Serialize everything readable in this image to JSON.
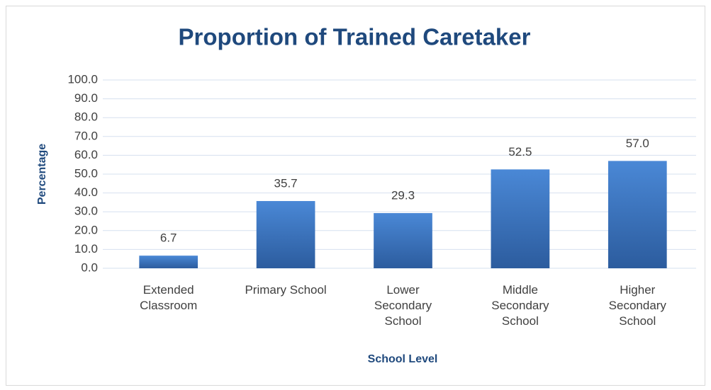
{
  "chart_data": {
    "type": "bar",
    "title": "Proportion of Trained Caretaker",
    "x_label": "School Level",
    "y_label": "Percentage",
    "categories": [
      "Extended Classroom",
      "Primary School",
      "Lower Secondary School",
      "Middle Secondary School",
      "Higher Secondary School"
    ],
    "values": [
      6.7,
      35.7,
      29.3,
      52.5,
      57.0
    ],
    "value_labels": [
      "6.7",
      "35.7",
      "29.3",
      "52.5",
      "57.0"
    ],
    "color": "#3a74c4",
    "ylim": [
      0,
      100
    ],
    "yticks": [
      {
        "value": 0,
        "label": "0.0"
      },
      {
        "value": 10,
        "label": "10.0"
      },
      {
        "value": 20,
        "label": "20.0"
      },
      {
        "value": 30,
        "label": "30.0"
      },
      {
        "value": 40,
        "label": "40.0"
      },
      {
        "value": 50,
        "label": "50.0"
      },
      {
        "value": 60,
        "label": "60.0"
      },
      {
        "value": 70,
        "label": "70.0"
      },
      {
        "value": 80,
        "label": "80.0"
      },
      {
        "value": 90,
        "label": "90.0"
      },
      {
        "value": 100,
        "label": "100.0"
      }
    ],
    "grid": true
  }
}
